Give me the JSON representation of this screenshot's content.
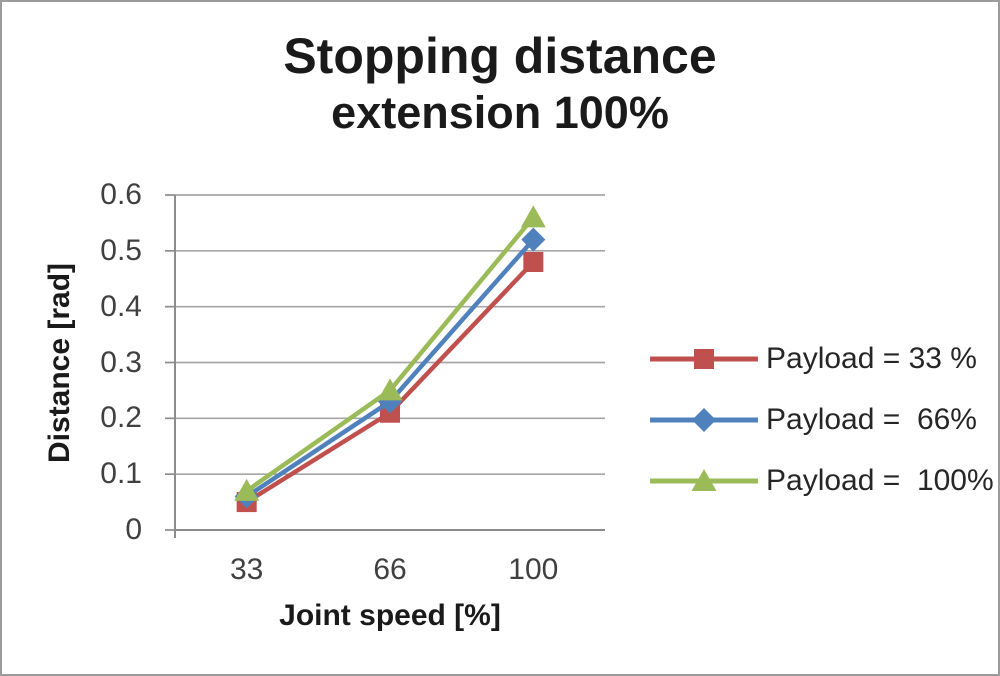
{
  "chart_data": {
    "type": "line",
    "title": "Stopping distance",
    "subtitle": "extension 100%",
    "categories": [
      33,
      66,
      100
    ],
    "x_tick_labels": [
      "33",
      "66",
      "100"
    ],
    "xlabel": "Joint speed [%]",
    "ylabel": "Distance [rad]",
    "ylim": [
      0,
      0.6
    ],
    "y_ticks": [
      "0",
      "0.1",
      "0.2",
      "0.3",
      "0.4",
      "0.5",
      "0.6"
    ],
    "grid": true,
    "legend_position": "right",
    "series": [
      {
        "name": "Payload = 33 %",
        "marker": "square",
        "color": "#C0504D",
        "values": [
          0.05,
          0.21,
          0.48
        ]
      },
      {
        "name": "Payload =  66%",
        "marker": "diamond",
        "color": "#4F81BD",
        "values": [
          0.06,
          0.23,
          0.52
        ]
      },
      {
        "name": "Payload =  100%",
        "marker": "triangle",
        "color": "#9BBB59",
        "values": [
          0.07,
          0.25,
          0.56
        ]
      }
    ],
    "colors": {
      "gridline": "#A6A6A6",
      "axis": "#8C8C8C",
      "tick_text": "#404040",
      "title_text": "#1A1A1A"
    }
  }
}
